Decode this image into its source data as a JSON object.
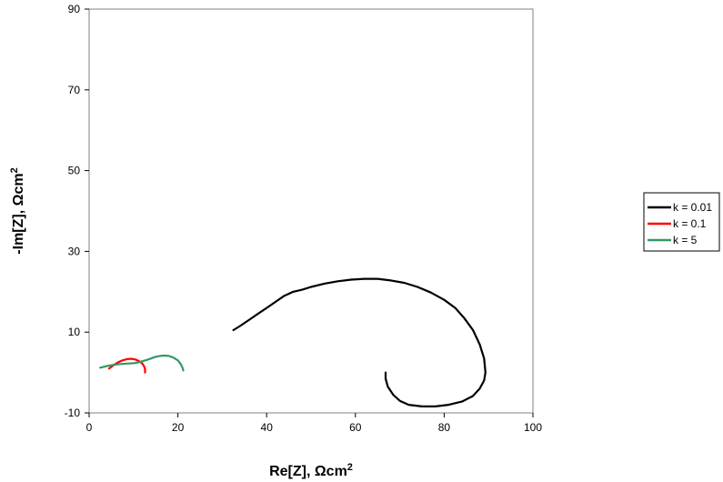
{
  "chart_data": {
    "type": "line",
    "title": "",
    "xlabel": "Re[Z], Ωcm",
    "ylabel": "-Im[Z], Ωcm",
    "unit_superscript": "2",
    "xlim": [
      0,
      100
    ],
    "ylim": [
      -10,
      90
    ],
    "xticks": [
      "0",
      "20",
      "40",
      "60",
      "80",
      "100"
    ],
    "yticks": [
      "-10",
      "10",
      "30",
      "50",
      "70",
      "90"
    ],
    "grid": false,
    "legend_position": "right",
    "series": [
      {
        "name": "k = 0.01",
        "color": "#000000",
        "points": [
          [
            32.5,
            10.5
          ],
          [
            34,
            11.5
          ],
          [
            36,
            13
          ],
          [
            38,
            14.5
          ],
          [
            40,
            16
          ],
          [
            42,
            17.5
          ],
          [
            44,
            19
          ],
          [
            46,
            20
          ],
          [
            48,
            20.5
          ],
          [
            50,
            21.2
          ],
          [
            53,
            22
          ],
          [
            56,
            22.6
          ],
          [
            59,
            23
          ],
          [
            62,
            23.2
          ],
          [
            65,
            23.2
          ],
          [
            68,
            22.8
          ],
          [
            71,
            22.2
          ],
          [
            74,
            21.2
          ],
          [
            77,
            19.8
          ],
          [
            80,
            18
          ],
          [
            82.5,
            16
          ],
          [
            84.5,
            13.5
          ],
          [
            86.5,
            10.5
          ],
          [
            88,
            7
          ],
          [
            89,
            3.5
          ],
          [
            89.3,
            0
          ],
          [
            89,
            -2
          ],
          [
            88,
            -4
          ],
          [
            86.5,
            -5.8
          ],
          [
            84,
            -7.2
          ],
          [
            81,
            -8
          ],
          [
            78,
            -8.4
          ],
          [
            75,
            -8.4
          ],
          [
            72,
            -8
          ],
          [
            70,
            -7
          ],
          [
            68.5,
            -5.5
          ],
          [
            67.3,
            -3.5
          ],
          [
            66.8,
            -1.5
          ],
          [
            66.8,
            0
          ]
        ]
      },
      {
        "name": "k = 0.1",
        "color": "#ff0000",
        "points": [
          [
            4.5,
            1
          ],
          [
            5.5,
            1.8
          ],
          [
            6.5,
            2.5
          ],
          [
            7.5,
            3
          ],
          [
            8.5,
            3.3
          ],
          [
            9.5,
            3.4
          ],
          [
            10.5,
            3.2
          ],
          [
            11.3,
            2.8
          ],
          [
            12,
            2.2
          ],
          [
            12.4,
            1.5
          ],
          [
            12.6,
            0.8
          ],
          [
            12.6,
            0
          ]
        ]
      },
      {
        "name": "k = 5",
        "color": "#339966",
        "points": [
          [
            2.5,
            1.2
          ],
          [
            4,
            1.6
          ],
          [
            5.5,
            1.9
          ],
          [
            7,
            2.1
          ],
          [
            8.5,
            2.2
          ],
          [
            10,
            2.3
          ],
          [
            11,
            2.5
          ],
          [
            12,
            2.8
          ],
          [
            13,
            3.1
          ],
          [
            14,
            3.5
          ],
          [
            15,
            3.9
          ],
          [
            16,
            4.1
          ],
          [
            17,
            4.2
          ],
          [
            18,
            4.1
          ],
          [
            19,
            3.7
          ],
          [
            20,
            3
          ],
          [
            20.7,
            2
          ],
          [
            21.1,
            1
          ],
          [
            21.2,
            0.5
          ]
        ]
      }
    ]
  }
}
